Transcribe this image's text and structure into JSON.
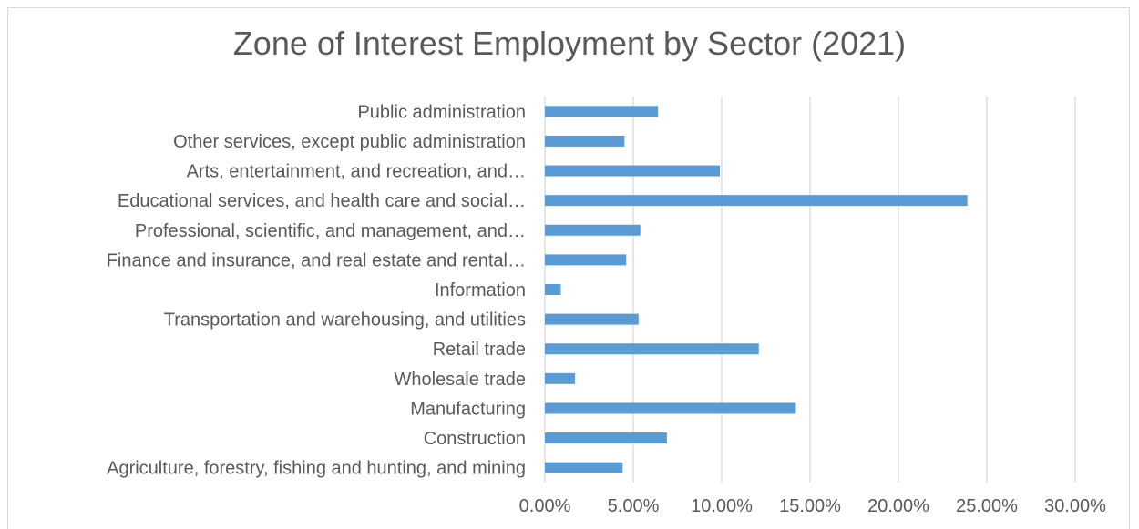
{
  "chart_data": {
    "type": "bar",
    "orientation": "horizontal",
    "title": "Zone of Interest Employment by Sector (2021)",
    "xlabel": "",
    "ylabel": "",
    "categories": [
      "Public administration",
      "Other services, except public administration",
      "Arts, entertainment, and recreation, and…",
      "Educational services, and health care and social…",
      "Professional, scientific, and management, and…",
      "Finance and insurance, and real estate and rental…",
      "Information",
      "Transportation and warehousing, and utilities",
      "Retail trade",
      "Wholesale trade",
      "Manufacturing",
      "Construction",
      "Agriculture, forestry, fishing and hunting, and mining"
    ],
    "values": [
      6.4,
      4.5,
      9.9,
      23.9,
      5.4,
      4.6,
      0.9,
      5.3,
      12.1,
      1.7,
      14.2,
      6.9,
      4.4
    ],
    "xlim": [
      0,
      30
    ],
    "xticks": [
      "0.00%",
      "5.00%",
      "10.00%",
      "15.00%",
      "20.00%",
      "25.00%",
      "30.00%"
    ],
    "grid": true,
    "legend": "none",
    "bar_color": "#5b9bd5",
    "gridline_color": "#d9d9d9",
    "text_color": "#595959"
  }
}
